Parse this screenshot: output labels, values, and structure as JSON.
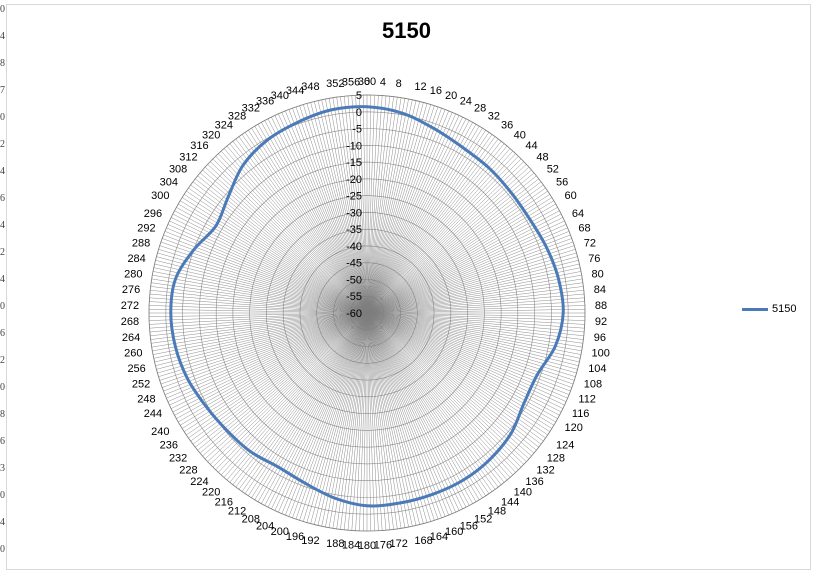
{
  "chart_data": {
    "type": "line",
    "subtype": "radar",
    "title": "5150",
    "angle_labels": [
      "0",
      "4",
      "8",
      "12",
      "16",
      "20",
      "24",
      "28",
      "32",
      "36",
      "40",
      "44",
      "48",
      "52",
      "56",
      "60",
      "64",
      "68",
      "72",
      "76",
      "80",
      "84",
      "88",
      "92",
      "96",
      "100",
      "104",
      "108",
      "112",
      "116",
      "120",
      "124",
      "128",
      "132",
      "136",
      "140",
      "144",
      "148",
      "152",
      "156",
      "160",
      "164",
      "168",
      "172",
      "176",
      "180",
      "184",
      "188",
      "192",
      "196",
      "200",
      "204",
      "208",
      "212",
      "216",
      "220",
      "224",
      "228",
      "232",
      "236",
      "240",
      "244",
      "248",
      "252",
      "256",
      "260",
      "264",
      "268",
      "272",
      "276",
      "280",
      "284",
      "288",
      "292",
      "296",
      "300",
      "304",
      "308",
      "312",
      "316",
      "320",
      "324",
      "328",
      "332",
      "336",
      "340",
      "344",
      "348",
      "352",
      "356",
      "360"
    ],
    "radial_ticks": [
      "5",
      "0",
      "-5",
      "-10",
      "-15",
      "-20",
      "-25",
      "-30",
      "-35",
      "-40",
      "-45",
      "-50",
      "-55",
      "-60"
    ],
    "rlim": [
      -60,
      5
    ],
    "legend_position": "right",
    "series": [
      {
        "name": "5150",
        "color": "#4a7ab8",
        "angles": [
          0,
          10,
          20,
          30,
          40,
          50,
          60,
          70,
          80,
          90,
          100,
          110,
          120,
          130,
          140,
          150,
          160,
          170,
          180,
          190,
          200,
          210,
          220,
          230,
          240,
          250,
          260,
          270,
          280,
          290,
          300,
          310,
          320,
          330,
          340,
          350
        ],
        "values": [
          1.5,
          0.5,
          -1.5,
          -3,
          -3.5,
          -4,
          -4,
          -3,
          -2,
          -1.5,
          -3,
          -6,
          -6,
          -4,
          -3,
          -2.5,
          -2.5,
          -2.5,
          -2.5,
          -4,
          -6,
          -7,
          -6,
          -5.5,
          -4.5,
          -3,
          -2,
          -1.5,
          -2,
          -5,
          -8,
          -6,
          -2.5,
          -0.5,
          0.5,
          1.5
        ]
      }
    ]
  },
  "legend": {
    "label": "5150",
    "color": "#4a7ab8"
  },
  "left_edge_ticks": [
    "0",
    "4",
    "8",
    "7",
    "0",
    "2",
    "4",
    "6",
    "4",
    "2",
    "4",
    "0",
    "6",
    "2",
    "0",
    "8",
    "6",
    "3",
    "0",
    "4",
    "0"
  ]
}
